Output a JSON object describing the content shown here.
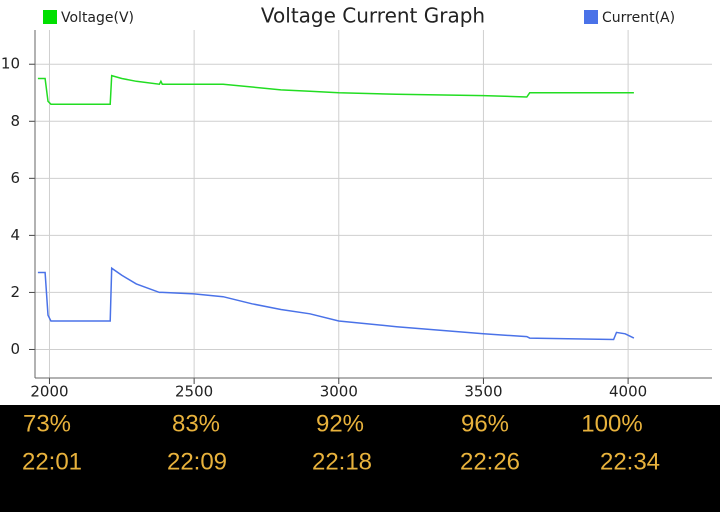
{
  "chart_data": {
    "type": "line",
    "title": "Voltage Current Graph",
    "x": [
      1960,
      1985,
      1995,
      2005,
      2210,
      2215,
      2250,
      2300,
      2380,
      2385,
      2390,
      2500,
      2600,
      2700,
      2800,
      2900,
      3000,
      3200,
      3500,
      3650,
      3660,
      3950,
      3960,
      3990,
      4020
    ],
    "series": [
      {
        "name": "Voltage(V)",
        "color": "#22dd22",
        "legend_color": "#00e000",
        "values": [
          9.5,
          9.5,
          8.7,
          8.6,
          8.6,
          9.6,
          9.5,
          9.4,
          9.3,
          9.4,
          9.3,
          9.3,
          9.3,
          9.2,
          9.1,
          9.05,
          9.0,
          8.95,
          8.9,
          8.85,
          9.0,
          9.0,
          9.0,
          9.0,
          9.0
        ]
      },
      {
        "name": "Current(A)",
        "color": "#4a72e8",
        "legend_color": "#4a72e8",
        "values": [
          2.7,
          2.7,
          1.2,
          1.0,
          1.0,
          2.85,
          2.6,
          2.3,
          2.0,
          2.0,
          2.0,
          1.95,
          1.85,
          1.6,
          1.4,
          1.25,
          1.0,
          0.8,
          0.55,
          0.45,
          0.4,
          0.35,
          0.6,
          0.55,
          0.4
        ]
      }
    ],
    "xlim": [
      1950,
      4290
    ],
    "ylim": [
      -1,
      11.2
    ],
    "xticks": [
      2000,
      2500,
      3000,
      3500,
      4000
    ],
    "yticks": [
      0,
      2,
      4,
      6,
      8,
      10
    ],
    "grid": true,
    "annotations": {
      "percents": [
        "73%",
        "83%",
        "92%",
        "96%",
        "100%"
      ],
      "times": [
        "22:01",
        "22:09",
        "22:18",
        "22:26",
        "22:34"
      ]
    }
  }
}
